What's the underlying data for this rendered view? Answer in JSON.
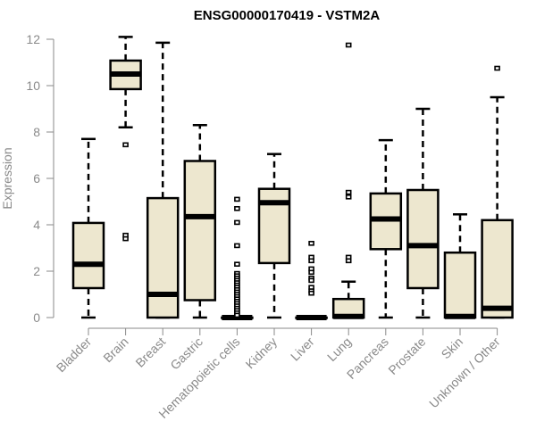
{
  "chart_data": {
    "type": "boxplot",
    "title": "ENSG00000170419 - VSTM2A",
    "xlabel": "",
    "ylabel": "Expression",
    "ylim": [
      0,
      12
    ],
    "yticks": [
      "0",
      "2",
      "4",
      "6",
      "8",
      "10",
      "12"
    ],
    "grid": false,
    "box_fill": "#ede7cf",
    "box_stroke": "#000000",
    "axis_color": "#8a8a8a",
    "categories": [
      "Bladder",
      "Brain",
      "Breast",
      "Gastric",
      "Hematopoietic cells",
      "Kidney",
      "Liver",
      "Lung",
      "Pancreas",
      "Prostate",
      "Skin",
      "Unknown / Other"
    ],
    "boxes": [
      {
        "name": "Bladder",
        "whisker_low": 0,
        "q1": 1.27,
        "median": 2.3,
        "q3": 4.08,
        "whisker_high": 7.7,
        "outliers": []
      },
      {
        "name": "Brain",
        "whisker_low": 8.2,
        "q1": 9.85,
        "median": 10.5,
        "q3": 11.08,
        "whisker_high": 12.1,
        "outliers": [
          7.45,
          3.55,
          3.4
        ]
      },
      {
        "name": "Breast",
        "whisker_low": 0,
        "q1": 0,
        "median": 1.0,
        "q3": 5.15,
        "whisker_high": 11.85,
        "outliers": []
      },
      {
        "name": "Gastric",
        "whisker_low": 0,
        "q1": 0.75,
        "median": 4.35,
        "q3": 6.75,
        "whisker_high": 8.3,
        "outliers": []
      },
      {
        "name": "Hematopoietic cells",
        "whisker_low": 0,
        "q1": 0,
        "median": 0,
        "q3": 0,
        "whisker_high": 0,
        "outliers": [
          5.1,
          4.7,
          4.1,
          3.1,
          2.3,
          1.9,
          1.8,
          1.7,
          1.6,
          1.5,
          1.4,
          1.3,
          1.2,
          1.1,
          1.0,
          0.9,
          0.8,
          0.7,
          0.6,
          0.5,
          0.4,
          0.3,
          0.2,
          0.1
        ]
      },
      {
        "name": "Kidney",
        "whisker_low": 0,
        "q1": 2.35,
        "median": 4.95,
        "q3": 5.55,
        "whisker_high": 7.05,
        "outliers": []
      },
      {
        "name": "Liver",
        "whisker_low": 0,
        "q1": 0,
        "median": 0,
        "q3": 0,
        "whisker_high": 0,
        "outliers": [
          3.2,
          2.6,
          2.45,
          2.1,
          1.95,
          1.7,
          1.6,
          1.3,
          1.15,
          1.05
        ]
      },
      {
        "name": "Lung",
        "whisker_low": 0,
        "q1": 0,
        "median": 0.05,
        "q3": 0.8,
        "whisker_high": 1.55,
        "outliers": [
          11.75,
          5.4,
          5.2,
          2.6,
          2.45
        ]
      },
      {
        "name": "Pancreas",
        "whisker_low": 0,
        "q1": 2.95,
        "median": 4.25,
        "q3": 5.35,
        "whisker_high": 7.65,
        "outliers": []
      },
      {
        "name": "Prostate",
        "whisker_low": 0,
        "q1": 1.27,
        "median": 3.1,
        "q3": 5.5,
        "whisker_high": 9.0,
        "outliers": []
      },
      {
        "name": "Skin",
        "whisker_low": 0,
        "q1": 0,
        "median": 0.05,
        "q3": 2.8,
        "whisker_high": 4.45,
        "outliers": []
      },
      {
        "name": "Unknown / Other",
        "whisker_low": 0,
        "q1": 0,
        "median": 0.4,
        "q3": 4.2,
        "whisker_high": 9.5,
        "outliers": [
          10.75
        ]
      }
    ]
  }
}
